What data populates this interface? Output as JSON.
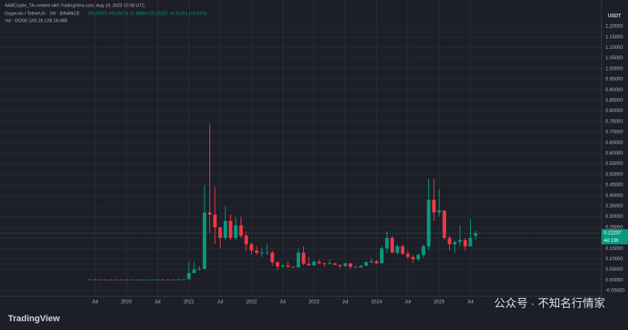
{
  "header": {
    "credit": "AABCrypto_TA created with TradingView.com, Aug 18, 2025 10:58 UTC",
    "symbol": "Dogecoin / TetherUS · 1W · BINANCE",
    "ohlc": "O0.20975 H0.23674 L0.18844 C0.22237 +0.01261 (+6.01%)",
    "volume": "Vol · DOGE (20)  26.12B  18.08B",
    "countdown": "4d 13h",
    "logo": "TradingView",
    "watermark": "公众号 · 不知名行情家"
  },
  "chart_data": {
    "type": "candlestick",
    "y_label": "USDT",
    "up_color": "#089981",
    "down_color": "#f23645",
    "categories": [
      null,
      "Jul",
      null,
      null,
      null,
      null,
      null,
      "2020",
      null,
      null,
      null,
      null,
      null,
      "Jul",
      null,
      null,
      null,
      null,
      null,
      "2021",
      null,
      null,
      null,
      null,
      null,
      "Jul",
      null,
      null,
      null,
      null,
      null,
      "2022",
      null,
      null,
      null,
      null,
      null,
      "Jul",
      null,
      null,
      null,
      null,
      null,
      "2023",
      null,
      null,
      null,
      null,
      null,
      "Jul",
      null,
      null,
      null,
      null,
      null,
      "2024",
      null,
      null,
      null,
      null,
      null,
      "Jul",
      null,
      null,
      null,
      null,
      null,
      "2025",
      null,
      null,
      null,
      null,
      null,
      "Jul",
      null
    ],
    "open": [
      0.003,
      0.004,
      0.003,
      0.0028,
      0.0026,
      0.0027,
      0.0022,
      0.002,
      0.0024,
      0.0025,
      0.0019,
      0.002,
      0.0025,
      0.0025,
      0.0033,
      0.0027,
      0.0026,
      0.0026,
      0.0035,
      0.0047,
      0.034,
      0.05,
      0.053,
      0.32,
      0.31,
      0.25,
      0.2,
      0.28,
      0.2,
      0.26,
      0.21,
      0.17,
      0.14,
      0.13,
      0.13,
      0.13,
      0.085,
      0.065,
      0.069,
      0.063,
      0.061,
      0.13,
      0.078,
      0.07,
      0.087,
      0.08,
      0.076,
      0.08,
      0.072,
      0.067,
      0.08,
      0.063,
      0.061,
      0.068,
      0.085,
      0.09,
      0.08,
      0.15,
      0.2,
      0.13,
      0.16,
      0.125,
      0.11,
      0.1,
      0.12,
      0.16,
      0.38,
      0.32,
      0.33,
      0.2,
      0.17,
      0.18,
      0.19,
      0.16,
      0.20975
    ],
    "high": [
      0.0045,
      0.0045,
      0.0033,
      0.003,
      0.0029,
      0.0029,
      0.0025,
      0.0026,
      0.0034,
      0.0029,
      0.0022,
      0.0026,
      0.0028,
      0.0035,
      0.0038,
      0.0029,
      0.0028,
      0.0037,
      0.0049,
      0.087,
      0.087,
      0.065,
      0.45,
      0.74,
      0.44,
      0.25,
      0.35,
      0.31,
      0.3,
      0.3,
      0.23,
      0.18,
      0.16,
      0.15,
      0.17,
      0.14,
      0.09,
      0.076,
      0.088,
      0.065,
      0.15,
      0.16,
      0.11,
      0.096,
      0.096,
      0.083,
      0.1,
      0.08,
      0.073,
      0.084,
      0.08,
      0.065,
      0.072,
      0.09,
      0.107,
      0.095,
      0.16,
      0.23,
      0.21,
      0.17,
      0.17,
      0.14,
      0.12,
      0.125,
      0.17,
      0.48,
      0.48,
      0.43,
      0.33,
      0.21,
      0.19,
      0.26,
      0.2,
      0.29,
      0.23674
    ],
    "low": [
      0.0028,
      0.0029,
      0.0026,
      0.0025,
      0.0024,
      0.0021,
      0.002,
      0.002,
      0.0023,
      0.0015,
      0.0017,
      0.0019,
      0.0024,
      0.0024,
      0.0026,
      0.0025,
      0.0024,
      0.0025,
      0.0034,
      0.0046,
      0.033,
      0.047,
      0.053,
      0.22,
      0.17,
      0.15,
      0.19,
      0.19,
      0.19,
      0.2,
      0.14,
      0.12,
      0.12,
      0.11,
      0.12,
      0.07,
      0.05,
      0.058,
      0.061,
      0.057,
      0.058,
      0.07,
      0.068,
      0.069,
      0.076,
      0.065,
      0.075,
      0.071,
      0.055,
      0.062,
      0.055,
      0.058,
      0.058,
      0.067,
      0.08,
      0.076,
      0.079,
      0.13,
      0.13,
      0.12,
      0.12,
      0.1,
      0.08,
      0.09,
      0.105,
      0.14,
      0.28,
      0.3,
      0.19,
      0.14,
      0.13,
      0.16,
      0.14,
      0.16,
      0.18844
    ],
    "close": [
      0.004,
      0.003,
      0.0028,
      0.0026,
      0.0027,
      0.0022,
      0.002,
      0.0024,
      0.0025,
      0.0019,
      0.002,
      0.0025,
      0.0025,
      0.0033,
      0.0027,
      0.0026,
      0.0026,
      0.0035,
      0.0047,
      0.034,
      0.05,
      0.053,
      0.32,
      0.31,
      0.25,
      0.2,
      0.28,
      0.2,
      0.26,
      0.21,
      0.17,
      0.14,
      0.13,
      0.13,
      0.13,
      0.085,
      0.065,
      0.069,
      0.063,
      0.061,
      0.13,
      0.078,
      0.07,
      0.087,
      0.08,
      0.076,
      0.08,
      0.072,
      0.067,
      0.08,
      0.063,
      0.061,
      0.068,
      0.085,
      0.09,
      0.08,
      0.15,
      0.2,
      0.13,
      0.16,
      0.125,
      0.11,
      0.1,
      0.12,
      0.16,
      0.38,
      0.32,
      0.33,
      0.2,
      0.17,
      0.18,
      0.19,
      0.16,
      0.2,
      0.22237
    ],
    "ylim": [
      -0.05,
      1.2
    ],
    "yticks": [
      {
        "value": -0.05,
        "label": "-0.05000"
      },
      {
        "value": 0,
        "label": "0.00000"
      },
      {
        "value": 0.05,
        "label": "0.05000"
      },
      {
        "value": 0.1,
        "label": "0.10000"
      },
      {
        "value": 0.15,
        "label": "0.15000"
      },
      {
        "value": 0.2,
        "label": "0.20000"
      },
      {
        "value": 0.25,
        "label": "0.25000"
      },
      {
        "value": 0.3,
        "label": "0.30000"
      },
      {
        "value": 0.35,
        "label": "0.35000"
      },
      {
        "value": 0.4,
        "label": "0.40000"
      },
      {
        "value": 0.45,
        "label": "0.45000"
      },
      {
        "value": 0.5,
        "label": "0.50000"
      },
      {
        "value": 0.55,
        "label": "0.55000"
      },
      {
        "value": 0.6,
        "label": "0.60000"
      },
      {
        "value": 0.65,
        "label": "0.65000"
      },
      {
        "value": 0.7,
        "label": "0.70000"
      },
      {
        "value": 0.75,
        "label": "0.75000"
      },
      {
        "value": 0.8,
        "label": "0.80000"
      },
      {
        "value": 0.85,
        "label": "0.85000"
      },
      {
        "value": 0.9,
        "label": "0.90000"
      },
      {
        "value": 0.95,
        "label": "0.95000"
      },
      {
        "value": 1,
        "label": "1.00000"
      },
      {
        "value": 1.05,
        "label": "1.05000"
      },
      {
        "value": 1.1,
        "label": "1.10000"
      },
      {
        "value": 1.15,
        "label": "1.15000"
      },
      {
        "value": 1.2,
        "label": "1.20000"
      }
    ],
    "grid": true
  }
}
